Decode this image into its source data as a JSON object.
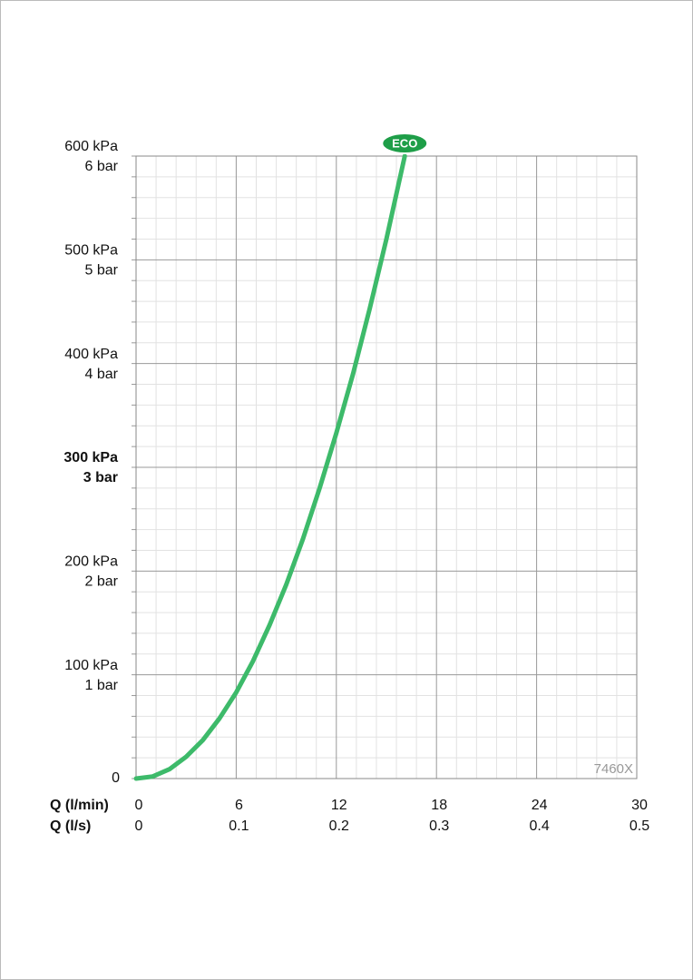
{
  "chart_data": {
    "type": "line",
    "x": [
      0,
      1,
      2,
      3,
      4,
      5,
      6,
      7,
      8,
      9,
      10,
      11,
      12,
      13,
      14,
      15,
      16.1
    ],
    "series": [
      {
        "color": "#3dba6a",
        "values": [
          0,
          2,
          9,
          21,
          37,
          58,
          83,
          113,
          148,
          187,
          231,
          280,
          333,
          390,
          453,
          520,
          600
        ]
      }
    ],
    "xlim": [
      0,
      30
    ],
    "xticks": [
      0,
      6,
      12,
      18,
      24,
      30
    ],
    "x2ticks": [
      {
        "value": 0,
        "label": "0"
      },
      {
        "value": 6,
        "label": "0.1"
      },
      {
        "value": 12,
        "label": "0.2"
      },
      {
        "value": 18,
        "label": "0.3"
      },
      {
        "value": 24,
        "label": "0.4"
      },
      {
        "value": 30,
        "label": "0.5"
      }
    ],
    "x_label": "Q (l/min)",
    "x2_label": "Q (l/s)",
    "ylim": [
      0,
      600
    ],
    "yticks": [
      0,
      {
        "value": 100,
        "label": "100 kPa"
      },
      {
        "value": 200,
        "label": "200 kPa"
      },
      {
        "value": 300,
        "label": "300 kPa"
      },
      {
        "value": 400,
        "label": "400 kPa"
      },
      {
        "value": 500,
        "label": "500 kPa"
      },
      {
        "value": 600,
        "label": "600 kPa"
      }
    ],
    "y_bar_ticks": [
      {
        "value": 100,
        "label": "1 bar"
      },
      {
        "value": 200,
        "label": "2 bar"
      },
      {
        "value": 300,
        "label": "3 bar"
      },
      {
        "value": 400,
        "label": "4 bar"
      },
      {
        "value": 500,
        "label": "5 bar"
      },
      {
        "value": 600,
        "label": "6 bar"
      }
    ],
    "bold_ytick": 300,
    "grid": true,
    "minor_divisions": 5,
    "end_badge": "ECO",
    "badge_color": "#1e9e48",
    "watermark": "7460X"
  }
}
